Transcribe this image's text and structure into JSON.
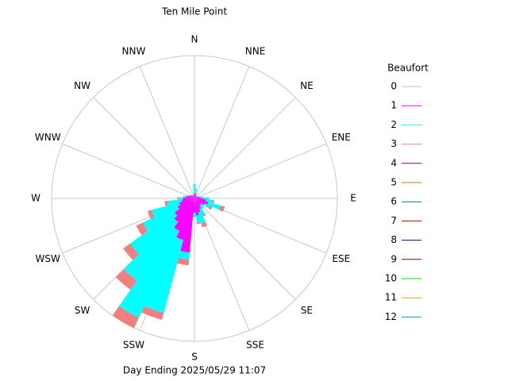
{
  "chart_data": {
    "type": "windrose",
    "title": "Ten Mile Point",
    "xlabel": "Day Ending 2025/05/29 11:07",
    "legend_title": "Beaufort",
    "x": [
      0,
      10,
      20,
      30,
      40,
      50,
      60,
      70,
      80,
      90,
      100,
      110,
      120,
      130,
      140,
      150,
      160,
      170,
      180,
      190,
      200,
      210,
      220,
      230,
      240,
      250,
      260,
      270,
      280,
      290,
      300,
      310,
      320,
      330,
      340,
      350
    ],
    "xlim": [
      0,
      360
    ],
    "xticks": [
      {
        "value": 0,
        "label": "N"
      },
      {
        "value": 22.5,
        "label": "NNE"
      },
      {
        "value": 45,
        "label": "NE"
      },
      {
        "value": 67.5,
        "label": "ENE"
      },
      {
        "value": 90,
        "label": "E"
      },
      {
        "value": 112.5,
        "label": "ESE"
      },
      {
        "value": 135,
        "label": "SE"
      },
      {
        "value": 157.5,
        "label": "SSE"
      },
      {
        "value": 180,
        "label": "S"
      },
      {
        "value": 202.5,
        "label": "SSW"
      },
      {
        "value": 225,
        "label": "SW"
      },
      {
        "value": 247.5,
        "label": "WSW"
      },
      {
        "value": 270,
        "label": "W"
      },
      {
        "value": 292.5,
        "label": "WNW"
      },
      {
        "value": 315,
        "label": "NW"
      },
      {
        "value": 337.5,
        "label": "NNW"
      }
    ],
    "rlim": [
      0,
      100
    ],
    "series": [
      {
        "name": "0",
        "color": "#c0c0c0",
        "values": [
          0,
          0,
          0,
          0,
          0,
          0,
          0,
          0,
          0,
          0,
          0,
          0,
          0,
          0,
          0,
          0,
          0,
          0,
          0,
          0,
          0,
          0,
          0,
          0,
          0,
          0,
          0,
          0,
          0,
          0,
          0,
          0,
          0,
          0,
          0,
          0
        ]
      },
      {
        "name": "1",
        "color": "#ff00ff",
        "values": [
          3,
          4,
          3,
          2,
          2,
          2,
          2,
          3,
          4,
          6,
          8,
          10,
          8,
          6,
          6,
          8,
          10,
          12,
          10,
          38,
          30,
          25,
          20,
          17,
          13,
          11,
          9,
          8,
          6,
          5,
          4,
          3,
          3,
          2,
          2,
          3
        ]
      },
      {
        "name": "2",
        "color": "#00ffff",
        "values": [
          7,
          3,
          0,
          0,
          0,
          0,
          1,
          1,
          2,
          4,
          5,
          9,
          4,
          2,
          3,
          5,
          8,
          5,
          3,
          5,
          53,
          67,
          50,
          38,
          27,
          20,
          10,
          3,
          2,
          1,
          0,
          0,
          0,
          0,
          0,
          1
        ]
      },
      {
        "name": "3",
        "color": "#f08080",
        "values": [
          0,
          0,
          0,
          0,
          0,
          0,
          0,
          0,
          0,
          0,
          1,
          3,
          2,
          0,
          0,
          1,
          3,
          1,
          0,
          4,
          5,
          8,
          8,
          6,
          5,
          3,
          2,
          1,
          0,
          0,
          0,
          0,
          0,
          0,
          0,
          0
        ]
      },
      {
        "name": "4",
        "color": "#800080",
        "values": [
          0,
          0,
          0,
          0,
          0,
          0,
          0,
          0,
          0,
          0,
          0,
          0,
          0,
          0,
          0,
          0,
          0,
          0,
          0,
          0,
          0,
          0,
          0,
          0,
          0,
          0,
          0,
          0,
          0,
          0,
          0,
          0,
          0,
          0,
          0,
          0
        ]
      },
      {
        "name": "5",
        "color": "#c08000",
        "values": [
          0,
          0,
          0,
          0,
          0,
          0,
          0,
          0,
          0,
          0,
          0,
          0,
          0,
          0,
          0,
          0,
          0,
          0,
          0,
          0,
          0,
          0,
          0,
          0,
          0,
          0,
          0,
          0,
          0,
          0,
          0,
          0,
          0,
          0,
          0,
          0
        ]
      },
      {
        "name": "6",
        "color": "#008080",
        "values": [
          0,
          0,
          0,
          0,
          0,
          0,
          0,
          0,
          0,
          0,
          0,
          0,
          0,
          0,
          0,
          0,
          0,
          0,
          0,
          0,
          0,
          0,
          0,
          0,
          0,
          0,
          0,
          0,
          0,
          0,
          0,
          0,
          0,
          0,
          0,
          0
        ]
      },
      {
        "name": "7",
        "color": "#c00000",
        "values": [
          0,
          0,
          0,
          0,
          0,
          0,
          0,
          0,
          0,
          0,
          0,
          0,
          0,
          0,
          0,
          0,
          0,
          0,
          0,
          0,
          0,
          0,
          0,
          0,
          0,
          0,
          0,
          0,
          0,
          0,
          0,
          0,
          0,
          0,
          0,
          0
        ]
      },
      {
        "name": "8",
        "color": "#000080",
        "values": [
          0,
          0,
          0,
          0,
          0,
          0,
          0,
          0,
          0,
          0,
          0,
          0,
          0,
          0,
          0,
          0,
          0,
          0,
          0,
          0,
          0,
          0,
          0,
          0,
          0,
          0,
          0,
          0,
          0,
          0,
          0,
          0,
          0,
          0,
          0,
          0
        ]
      },
      {
        "name": "9",
        "color": "#800000",
        "values": [
          0,
          0,
          0,
          0,
          0,
          0,
          0,
          0,
          0,
          0,
          0,
          0,
          0,
          0,
          0,
          0,
          0,
          0,
          0,
          0,
          0,
          0,
          0,
          0,
          0,
          0,
          0,
          0,
          0,
          0,
          0,
          0,
          0,
          0,
          0,
          0
        ]
      },
      {
        "name": "10",
        "color": "#00e000",
        "values": [
          0,
          0,
          0,
          0,
          0,
          0,
          0,
          0,
          0,
          0,
          0,
          0,
          0,
          0,
          0,
          0,
          0,
          0,
          0,
          0,
          0,
          0,
          0,
          0,
          0,
          0,
          0,
          0,
          0,
          0,
          0,
          0,
          0,
          0,
          0,
          0
        ]
      },
      {
        "name": "11",
        "color": "#e0a000",
        "values": [
          0,
          0,
          0,
          0,
          0,
          0,
          0,
          0,
          0,
          0,
          0,
          0,
          0,
          0,
          0,
          0,
          0,
          0,
          0,
          0,
          0,
          0,
          0,
          0,
          0,
          0,
          0,
          0,
          0,
          0,
          0,
          0,
          0,
          0,
          0,
          0
        ]
      },
      {
        "name": "12",
        "color": "#00a0a0",
        "values": [
          0,
          0,
          0,
          0,
          0,
          0,
          0,
          0,
          0,
          0,
          0,
          0,
          0,
          0,
          0,
          0,
          0,
          0,
          0,
          0,
          0,
          0,
          0,
          0,
          0,
          0,
          0,
          0,
          0,
          0,
          0,
          0,
          0,
          0,
          0,
          0
        ]
      }
    ]
  }
}
